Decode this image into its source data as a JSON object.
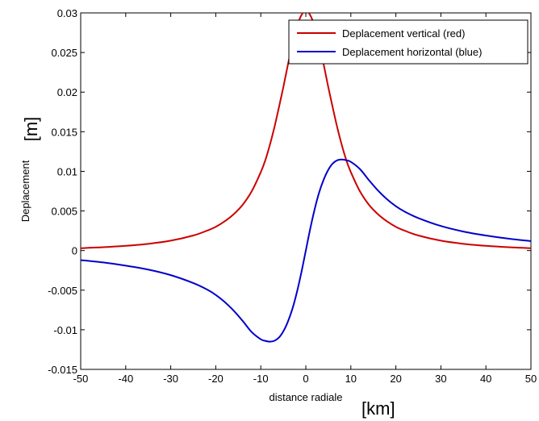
{
  "chart_data": {
    "type": "line",
    "xlabel": "distance radiale",
    "ylabel": "Deplacement",
    "x_unit": "[km]",
    "y_unit": "[m]",
    "xlim": [
      -50,
      50
    ],
    "ylim": [
      -0.015,
      0.03
    ],
    "xticks": [
      "-50",
      "-40",
      "-30",
      "-20",
      "-10",
      "0",
      "10",
      "20",
      "30",
      "40",
      "50"
    ],
    "yticks": [
      "-0.015",
      "-0.01",
      "-0.005",
      "0",
      "0.005",
      "0.01",
      "0.015",
      "0.02",
      "0.025",
      "0.03"
    ],
    "grid": false,
    "legend_position": "top-right",
    "x": [
      -50,
      -45,
      -40,
      -35,
      -30,
      -25,
      -22,
      -20,
      -18,
      -16,
      -14,
      -12,
      -10,
      -9,
      -8,
      -7,
      -6,
      -5,
      -4,
      -3,
      -2,
      -1,
      0,
      1,
      2,
      3,
      4,
      5,
      6,
      7,
      8,
      9,
      10,
      12,
      14,
      16,
      18,
      20,
      22,
      25,
      30,
      35,
      40,
      45,
      50
    ],
    "series": [
      {
        "name": "Deplacement vertical (red)",
        "color": "#cc0000",
        "values": [
          0.0003,
          0.00042,
          0.0006,
          0.00085,
          0.00125,
          0.0019,
          0.0025,
          0.003,
          0.0037,
          0.0046,
          0.0058,
          0.0075,
          0.0099,
          0.0114,
          0.0133,
          0.0155,
          0.018,
          0.0206,
          0.0234,
          0.026,
          0.0282,
          0.0297,
          0.0302,
          0.0297,
          0.0282,
          0.026,
          0.0234,
          0.0206,
          0.018,
          0.0155,
          0.0133,
          0.0114,
          0.0099,
          0.0075,
          0.0058,
          0.0046,
          0.0037,
          0.003,
          0.0025,
          0.0019,
          0.00125,
          0.00085,
          0.0006,
          0.00042,
          0.0003
        ]
      },
      {
        "name": "Deplacement horizontal (blue)",
        "color": "#0000cc",
        "values": [
          -0.0012,
          -0.0015,
          -0.0019,
          -0.0024,
          -0.0031,
          -0.0041,
          -0.0049,
          -0.0056,
          -0.0065,
          -0.0076,
          -0.0089,
          -0.0103,
          -0.0112,
          -0.0114,
          -0.0115,
          -0.0114,
          -0.011,
          -0.0102,
          -0.009,
          -0.0074,
          -0.0053,
          -0.0028,
          0,
          0.0028,
          0.0053,
          0.0074,
          0.009,
          0.0102,
          0.011,
          0.0114,
          0.0115,
          0.0114,
          0.0112,
          0.0103,
          0.0089,
          0.0076,
          0.0065,
          0.0056,
          0.0049,
          0.0041,
          0.0031,
          0.0024,
          0.0019,
          0.0015,
          0.0012
        ]
      }
    ]
  }
}
